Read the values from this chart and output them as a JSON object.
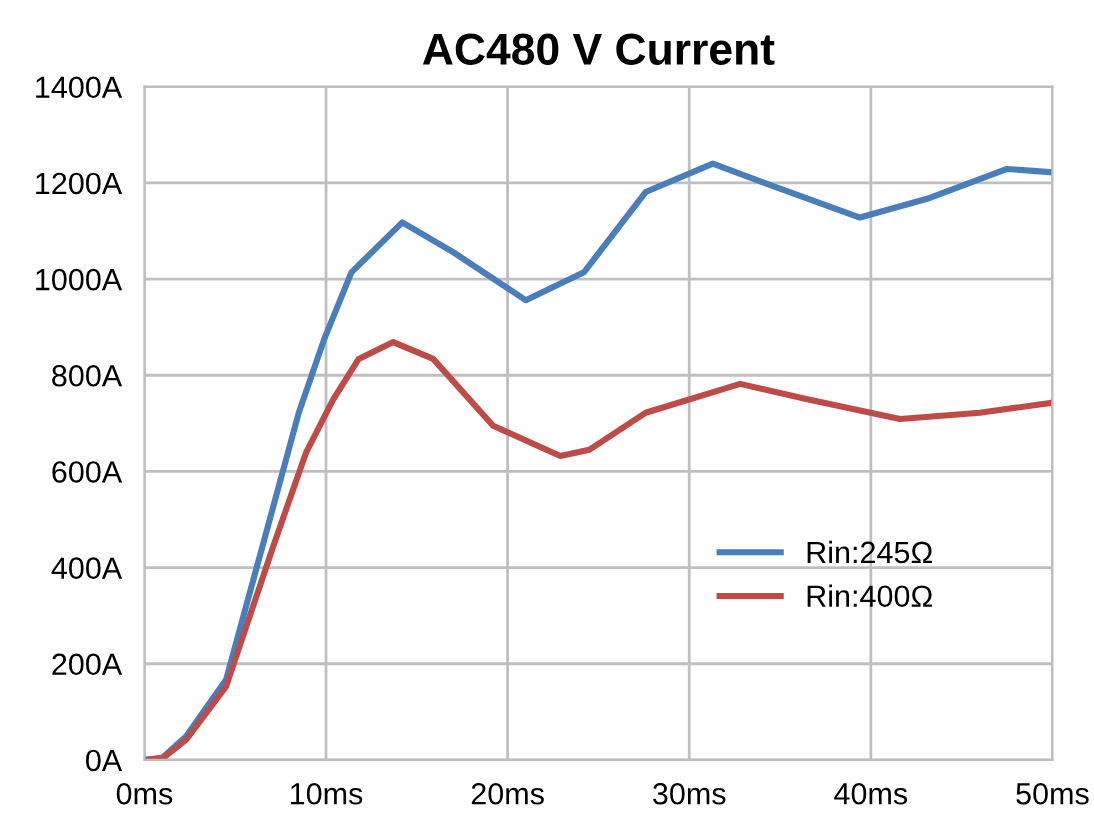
{
  "chart_data": {
    "type": "line",
    "title": "AC480 V Current",
    "xlim": [
      0,
      50
    ],
    "xticks": [
      {
        "value": 0,
        "label": "0ms"
      },
      {
        "value": 10,
        "label": "10ms"
      },
      {
        "value": 20,
        "label": "20ms"
      },
      {
        "value": 30,
        "label": "30ms"
      },
      {
        "value": 40,
        "label": "40ms"
      },
      {
        "value": 50,
        "label": "50ms"
      }
    ],
    "ylim": [
      0,
      1400
    ],
    "yticks": [
      {
        "value": 0,
        "label": "0A"
      },
      {
        "value": 200,
        "label": "200A"
      },
      {
        "value": 400,
        "label": "400A"
      },
      {
        "value": 600,
        "label": "600A"
      },
      {
        "value": 800,
        "label": "800A"
      },
      {
        "value": 1000,
        "label": "1000A"
      },
      {
        "value": 1200,
        "label": "1200A"
      },
      {
        "value": 1400,
        "label": "1400A"
      }
    ],
    "grid": true,
    "legend": "right",
    "marker": "none",
    "line_style": "solid",
    "series": [
      {
        "name": "Rin:245Ω",
        "color": "#4a7ebb",
        "x": [
          0,
          1,
          2.3,
          4.5,
          6.7,
          8.5,
          9.9,
          11.4,
          14.2,
          17,
          21,
          24.2,
          26.2,
          27.6,
          31.3,
          35,
          39.4,
          43.1,
          47.5,
          50
        ],
        "values": [
          0,
          5,
          49,
          167,
          472,
          722,
          875,
          1014,
          1118,
          1056,
          956,
          1014,
          1112,
          1181,
          1240,
          1188,
          1128,
          1167,
          1229,
          1222
        ]
      },
      {
        "name": "Rin:400Ω",
        "color": "#be4b48",
        "x": [
          0,
          1,
          2.3,
          4.5,
          7.1,
          8.9,
          10.4,
          11.8,
          13.7,
          15.9,
          19.2,
          22.9,
          24.5,
          27.6,
          32.8,
          36.5,
          41.6,
          46,
          50
        ],
        "values": [
          0,
          3,
          42,
          153,
          445,
          639,
          750,
          834,
          869,
          834,
          695,
          632,
          645,
          722,
          782,
          750,
          709,
          722,
          743
        ]
      }
    ]
  }
}
